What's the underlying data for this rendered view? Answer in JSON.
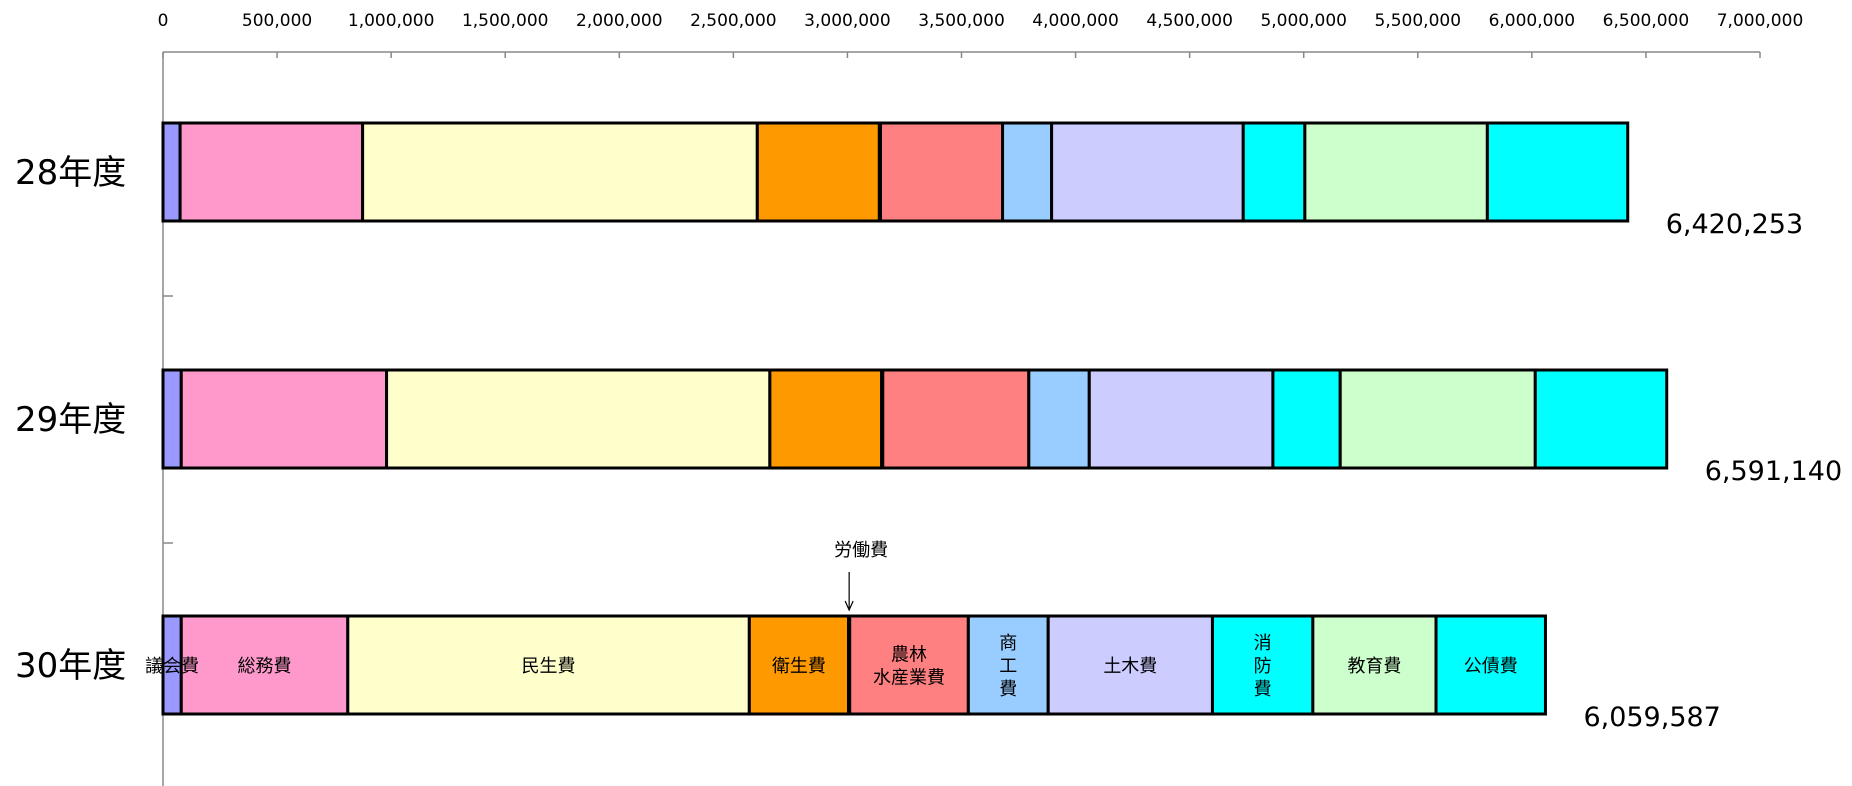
{
  "chart_data": {
    "type": "bar",
    "orientation": "horizontal",
    "stacked": true,
    "xlim": [
      0,
      7000000
    ],
    "x_ticks": [
      "0",
      "500,000",
      "1,000,000",
      "1,500,000",
      "2,000,000",
      "2,500,000",
      "3,000,000",
      "3,500,000",
      "4,000,000",
      "4,500,000",
      "5,000,000",
      "5,500,000",
      "6,000,000",
      "6,500,000",
      "7,000,000"
    ],
    "categories": [
      "28年度",
      "29年度",
      "30年度"
    ],
    "totals": [
      "6,420,253",
      "6,591,140",
      "6,059,587"
    ],
    "series": [
      {
        "label": "議会費",
        "color": "#9999ff",
        "values": [
          75000,
          80000,
          80000
        ]
      },
      {
        "label": "総務費",
        "color": "#ff99cc",
        "values": [
          800000,
          900000,
          730000
        ]
      },
      {
        "label": "民生費",
        "color": "#ffffcc",
        "values": [
          1730000,
          1680000,
          1760000
        ]
      },
      {
        "label": "衛生費",
        "color": "#ff9900",
        "values": [
          535000,
          490000,
          435000
        ]
      },
      {
        "label": "労働費",
        "color": "#ff8080",
        "values": [
          5000,
          5000,
          5000
        ]
      },
      {
        "label": "農林\n水産業費",
        "color": "#ff8080",
        "values": [
          535000,
          640000,
          520000
        ]
      },
      {
        "label": "商\n工\n費",
        "color": "#99ccff",
        "values": [
          215000,
          265000,
          350000
        ]
      },
      {
        "label": "土木費",
        "color": "#ccccff",
        "values": [
          840000,
          805000,
          720000
        ]
      },
      {
        "label": "消\n防\n費",
        "color": "#00ffff",
        "values": [
          270000,
          295000,
          440000
        ]
      },
      {
        "label": "教育費",
        "color": "#ccffcc",
        "values": [
          800000,
          855000,
          540000
        ]
      },
      {
        "label": "公債費",
        "color": "#00ffff",
        "values": [
          615253,
          576140,
          479587
        ]
      }
    ],
    "annotation": {
      "text": "労働費",
      "series_index": 4,
      "category_index": 2
    }
  }
}
